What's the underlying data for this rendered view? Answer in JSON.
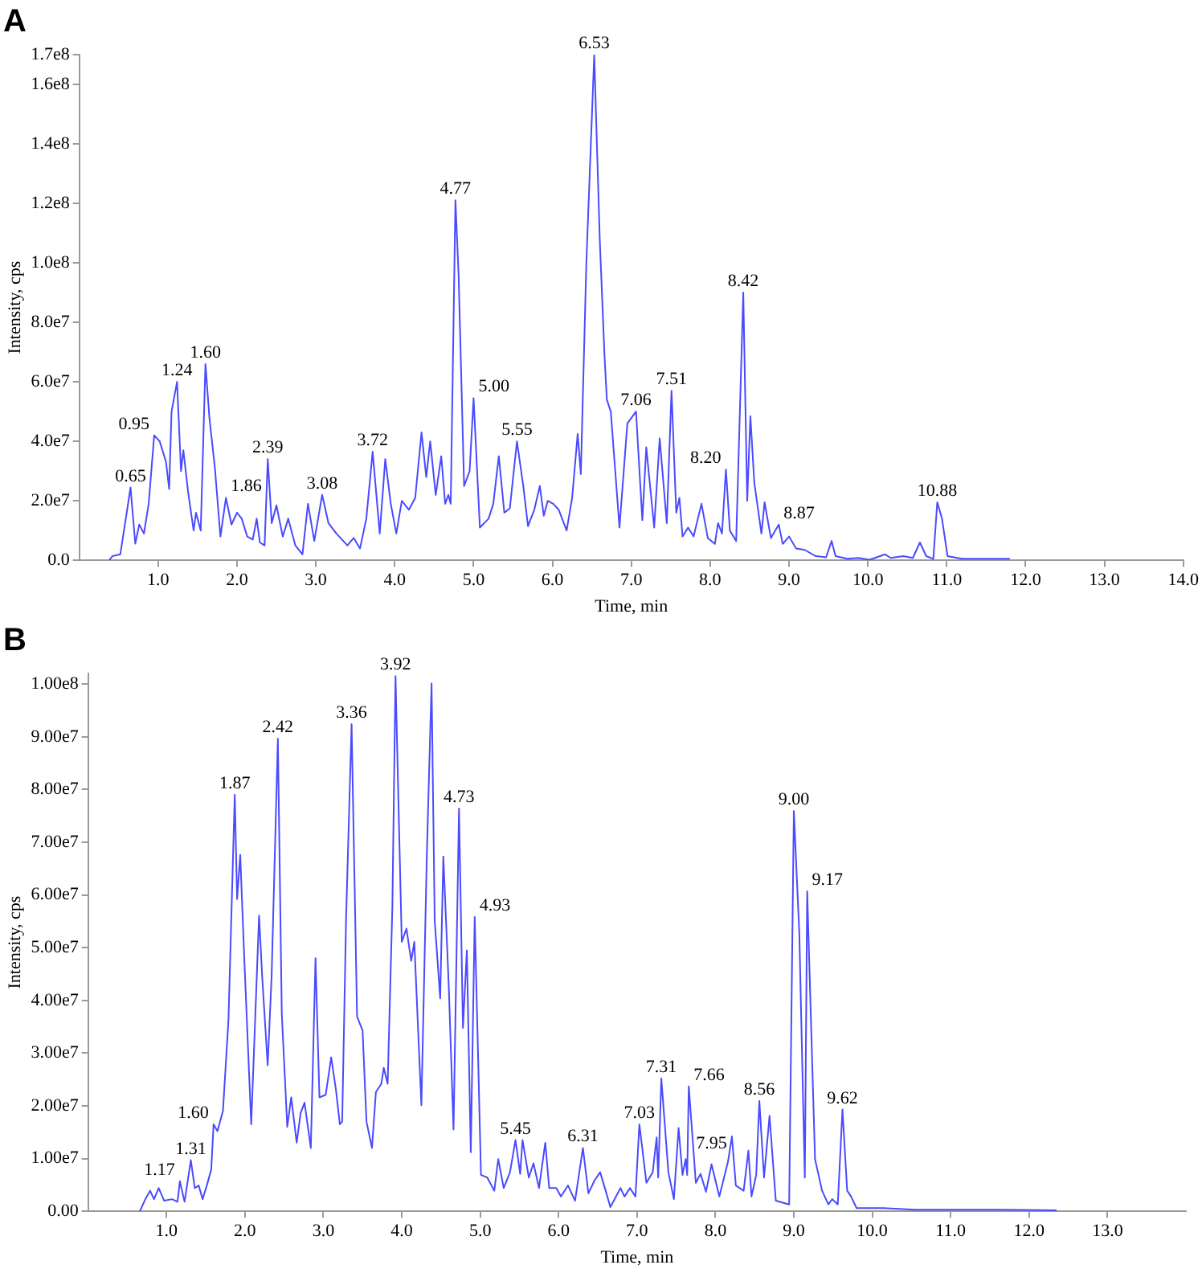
{
  "chart_data": [
    {
      "type": "line",
      "title": "A",
      "xlabel": "Time, min",
      "ylabel": "Intensity, cps",
      "x": [
        0.38,
        0.42,
        0.52,
        0.59,
        0.65,
        0.71,
        0.76,
        0.82,
        0.88,
        0.95,
        1.02,
        1.1,
        1.14,
        1.17,
        1.24,
        1.29,
        1.32,
        1.38,
        1.45,
        1.48,
        1.54,
        1.6,
        1.65,
        1.72,
        1.79,
        1.86,
        1.93,
        2.0,
        2.06,
        2.13,
        2.2,
        2.25,
        2.29,
        2.35,
        2.39,
        2.44,
        2.5,
        2.58,
        2.65,
        2.74,
        2.83,
        2.9,
        2.98,
        3.08,
        3.16,
        3.26,
        3.4,
        3.48,
        3.56,
        3.64,
        3.72,
        3.81,
        3.88,
        3.95,
        4.02,
        4.09,
        4.18,
        4.26,
        4.34,
        4.4,
        4.45,
        4.52,
        4.59,
        4.64,
        4.68,
        4.71,
        4.77,
        4.81,
        4.88,
        4.95,
        5.0,
        5.08,
        5.19,
        5.25,
        5.32,
        5.39,
        5.46,
        5.55,
        5.63,
        5.69,
        5.77,
        5.84,
        5.89,
        5.94,
        6.01,
        6.08,
        6.18,
        6.25,
        6.32,
        6.36,
        6.43,
        6.53,
        6.6,
        6.66,
        6.69,
        6.74,
        6.85,
        6.95,
        7.06,
        7.14,
        7.19,
        7.29,
        7.36,
        7.45,
        7.51,
        7.57,
        7.61,
        7.65,
        7.72,
        7.79,
        7.89,
        7.97,
        8.06,
        8.1,
        8.15,
        8.2,
        8.25,
        8.33,
        8.42,
        8.47,
        8.51,
        8.56,
        8.65,
        8.69,
        8.77,
        8.87,
        8.92,
        9.0,
        9.09,
        9.2,
        9.34,
        9.47,
        9.54,
        9.59,
        9.74,
        9.88,
        10.02,
        10.22,
        10.29,
        10.45,
        10.57,
        10.66,
        10.74,
        10.83,
        10.88,
        10.94,
        11.01,
        11.19,
        11.8
      ],
      "series": [
        {
          "color": "#4a4aff",
          "values": [
            0,
            1400000.0,
            2000000.0,
            14000000.0,
            24500000.0,
            5600000.0,
            12000000.0,
            9000000.0,
            19000000.0,
            42000000.0,
            40000000.0,
            33000000.0,
            24000000.0,
            50000000.0,
            60000000.0,
            30000000.0,
            37000000.0,
            23000000.0,
            10000000.0,
            16000000.0,
            10000000.0,
            66000000.0,
            48000000.0,
            31000000.0,
            8000000.0,
            21000000.0,
            12000000.0,
            16000000.0,
            14000000.0,
            8000000.0,
            7000000.0,
            14000000.0,
            6000000.0,
            5000000.0,
            34000000.0,
            12500000.0,
            18500000.0,
            8000000.0,
            14000000.0,
            5000000.0,
            2000000.0,
            19000000.0,
            6500000.0,
            22000000.0,
            12500000.0,
            9000000.0,
            5000000.0,
            7500000.0,
            4000000.0,
            14000000.0,
            36500000.0,
            9000000.0,
            34000000.0,
            19000000.0,
            9000000.0,
            20000000.0,
            17000000.0,
            21000000.0,
            43000000.0,
            28000000.0,
            40000000.0,
            22000000.0,
            35000000.0,
            19000000.0,
            22000000.0,
            19000000.0,
            121000000.0,
            96000000.0,
            25000000.0,
            30000000.0,
            54500000.0,
            11000000.0,
            14000000.0,
            19000000.0,
            35000000.0,
            16000000.0,
            17500000.0,
            40000000.0,
            25000000.0,
            11500000.0,
            17000000.0,
            25000000.0,
            15000000.0,
            20000000.0,
            19000000.0,
            17000000.0,
            10000000.0,
            21000000.0,
            42500000.0,
            29000000.0,
            100000000.0,
            170000000.0,
            108000000.0,
            69000000.0,
            54000000.0,
            50000000.0,
            11000000.0,
            46000000.0,
            50000000.0,
            13500000.0,
            38000000.0,
            11000000.0,
            41000000.0,
            12500000.0,
            57000000.0,
            16000000.0,
            21000000.0,
            8000000.0,
            11000000.0,
            8000000.0,
            19000000.0,
            7500000.0,
            5500000.0,
            12500000.0,
            9000000.0,
            30500000.0,
            10000000.0,
            6500000.0,
            90000000.0,
            20000000.0,
            48500000.0,
            26000000.0,
            9000000.0,
            19500000.0,
            7500000.0,
            12000000.0,
            5500000.0,
            8000000.0,
            4000000.0,
            3500000.0,
            1400000.0,
            1000000.0,
            6500000.0,
            1400000.0,
            500000.0,
            800000.0,
            200000.0,
            2000000.0,
            800000.0,
            1400000.0,
            800000.0,
            6000000.0,
            1400000.0,
            500000.0,
            19500000.0,
            14000000.0,
            1400000.0,
            500000.0,
            500000.0
          ]
        }
      ],
      "xlim": [
        0,
        14
      ],
      "xticks": [
        {
          "value": 1,
          "label": "1.0"
        },
        {
          "value": 2,
          "label": "2.0"
        },
        {
          "value": 3,
          "label": "3.0"
        },
        {
          "value": 4,
          "label": "4.0"
        },
        {
          "value": 5,
          "label": "5.0"
        },
        {
          "value": 6,
          "label": "6.0"
        },
        {
          "value": 7,
          "label": "7.0"
        },
        {
          "value": 8,
          "label": "8.0"
        },
        {
          "value": 9,
          "label": "9.0"
        },
        {
          "value": 10,
          "label": "10.0"
        },
        {
          "value": 11,
          "label": "11.0"
        },
        {
          "value": 12,
          "label": "12.0"
        },
        {
          "value": 13,
          "label": "13.0"
        },
        {
          "value": 14,
          "label": "14.0"
        }
      ],
      "ylim": [
        0,
        170000000.0
      ],
      "yticks": [
        {
          "value": 0,
          "label": "0.0"
        },
        {
          "value": 20000000.0,
          "label": "2.0e7"
        },
        {
          "value": 40000000.0,
          "label": "4.0e7"
        },
        {
          "value": 60000000.0,
          "label": "6.0e7"
        },
        {
          "value": 80000000.0,
          "label": "8.0e7"
        },
        {
          "value": 100000000.0,
          "label": "1.0e8"
        },
        {
          "value": 120000000.0,
          "label": "1.2e8"
        },
        {
          "value": 140000000.0,
          "label": "1.4e8"
        },
        {
          "value": 160000000.0,
          "label": "1.6e8"
        },
        {
          "value": 170000000.0,
          "label": "1.7e8"
        }
      ],
      "annotations": [
        {
          "text": "0.65",
          "x": 0.65,
          "y": 24500000.0
        },
        {
          "text": "0.95",
          "x": 0.95,
          "y": 42000000.0
        },
        {
          "text": "1.24",
          "x": 1.24,
          "y": 60000000.0
        },
        {
          "text": "1.60",
          "x": 1.6,
          "y": 66000000.0
        },
        {
          "text": "1.86",
          "x": 1.86,
          "y": 21000000.0
        },
        {
          "text": "2.39",
          "x": 2.39,
          "y": 34000000.0
        },
        {
          "text": "3.08",
          "x": 3.08,
          "y": 22000000.0
        },
        {
          "text": "3.72",
          "x": 3.72,
          "y": 36500000.0
        },
        {
          "text": "4.77",
          "x": 4.77,
          "y": 121000000.0
        },
        {
          "text": "5.00",
          "x": 5.0,
          "y": 54500000.0
        },
        {
          "text": "5.55",
          "x": 5.55,
          "y": 40000000.0
        },
        {
          "text": "6.53",
          "x": 6.53,
          "y": 170000000.0
        },
        {
          "text": "7.06",
          "x": 7.06,
          "y": 50000000.0
        },
        {
          "text": "7.51",
          "x": 7.51,
          "y": 57000000.0
        },
        {
          "text": "8.20",
          "x": 8.2,
          "y": 30500000.0
        },
        {
          "text": "8.42",
          "x": 8.42,
          "y": 90000000.0
        },
        {
          "text": "8.87",
          "x": 8.87,
          "y": 12000000.0
        },
        {
          "text": "10.88",
          "x": 10.88,
          "y": 19500000.0
        }
      ]
    },
    {
      "type": "line",
      "title": "B",
      "xlabel": "Time, min",
      "ylabel": "Intensity, cps",
      "x": [
        0.66,
        0.73,
        0.79,
        0.84,
        0.9,
        0.97,
        1.07,
        1.14,
        1.17,
        1.23,
        1.31,
        1.36,
        1.41,
        1.46,
        1.51,
        1.57,
        1.6,
        1.65,
        1.72,
        1.79,
        1.87,
        1.9,
        1.94,
        1.99,
        2.08,
        2.18,
        2.22,
        2.29,
        2.34,
        2.42,
        2.47,
        2.54,
        2.59,
        2.66,
        2.71,
        2.76,
        2.84,
        2.9,
        2.95,
        3.03,
        3.1,
        3.16,
        3.21,
        3.24,
        3.29,
        3.36,
        3.43,
        3.5,
        3.55,
        3.62,
        3.67,
        3.74,
        3.77,
        3.82,
        3.88,
        3.92,
        3.97,
        4.0,
        4.06,
        4.12,
        4.16,
        4.25,
        4.32,
        4.38,
        4.42,
        4.49,
        4.53,
        4.6,
        4.66,
        4.73,
        4.78,
        4.83,
        4.88,
        4.93,
        5.01,
        5.09,
        5.18,
        5.23,
        5.3,
        5.38,
        5.45,
        5.51,
        5.54,
        5.62,
        5.68,
        5.75,
        5.83,
        5.88,
        5.97,
        6.03,
        6.12,
        6.21,
        6.31,
        6.38,
        6.46,
        6.53,
        6.6,
        6.66,
        6.79,
        6.84,
        6.91,
        6.98,
        7.03,
        7.12,
        7.2,
        7.25,
        7.27,
        7.31,
        7.4,
        7.47,
        7.53,
        7.58,
        7.62,
        7.64,
        7.66,
        7.75,
        7.81,
        7.88,
        7.95,
        8.05,
        8.16,
        8.21,
        8.26,
        8.36,
        8.42,
        8.46,
        8.52,
        8.56,
        8.62,
        8.69,
        8.77,
        8.94,
        9.0,
        9.07,
        9.14,
        9.17,
        9.27,
        9.36,
        9.44,
        9.49,
        9.56,
        9.62,
        9.68,
        9.73,
        9.8,
        10.14,
        10.55,
        11.64,
        12.35
      ],
      "series": [
        {
          "color": "#4a4aff",
          "values": [
            0,
            2300000.0,
            3900000.0,
            2300000.0,
            4400000.0,
            2000000.0,
            2300000.0,
            1800000.0,
            5700000.0,
            1800000.0,
            9700000.0,
            4400000.0,
            4900000.0,
            2300000.0,
            4700000.0,
            7900000.0,
            16500000.0,
            15200000.0,
            19100000.0,
            36300000.0,
            79000000.0,
            59200000.0,
            67600000.0,
            48500000.0,
            16500000.0,
            56100000.0,
            44500000.0,
            27700000.0,
            44500000.0,
            89600000.0,
            37400000.0,
            16000000.0,
            21600000.0,
            13000000.0,
            18600000.0,
            20600000.0,
            12000000.0,
            48000000.0,
            21600000.0,
            22100000.0,
            29200000.0,
            23100000.0,
            16500000.0,
            17000000.0,
            55600000.0,
            92400000.0,
            36900000.0,
            34300000.0,
            17000000.0,
            12000000.0,
            22600000.0,
            24200000.0,
            27200000.0,
            24200000.0,
            57700000.0,
            101500000.0,
            69800000.0,
            51100000.0,
            53600000.0,
            47500000.0,
            51100000.0,
            20100000.0,
            67800000.0,
            100100000.0,
            55100000.0,
            40400000.0,
            67300000.0,
            42400000.0,
            15500000.0,
            76400000.0,
            34800000.0,
            49500000.0,
            11200000.0,
            55800000.0,
            6900000.0,
            6400000.0,
            3900000.0,
            9900000.0,
            4400000.0,
            7400000.0,
            13500000.0,
            7100000.0,
            13500000.0,
            6400000.0,
            9100000.0,
            4400000.0,
            13000000.0,
            4400000.0,
            4400000.0,
            2800000.0,
            4900000.0,
            2000000.0,
            12000000.0,
            3400000.0,
            5900000.0,
            7400000.0,
            3900000.0,
            800000.0,
            4400000.0,
            2800000.0,
            4400000.0,
            2800000.0,
            16500000.0,
            5400000.0,
            7400000.0,
            14000000.0,
            6400000.0,
            25200000.0,
            7400000.0,
            2300000.0,
            15800000.0,
            6900000.0,
            9900000.0,
            6900000.0,
            23700000.0,
            5400000.0,
            7100000.0,
            3700000.0,
            8900000.0,
            2800000.0,
            9400000.0,
            14200000.0,
            4900000.0,
            3900000.0,
            11500000.0,
            2800000.0,
            6900000.0,
            20900000.0,
            6400000.0,
            18100000.0,
            2000000.0,
            1300000.0,
            75900000.0,
            52600000.0,
            6400000.0,
            60700000.0,
            9900000.0,
            3900000.0,
            1300000.0,
            2300000.0,
            1300000.0,
            19300000.0,
            3900000.0,
            2800000.0,
            600000.0,
            600000.0,
            300000.0,
            300000.0,
            200000.0
          ]
        }
      ],
      "xlim": [
        0,
        14
      ],
      "xticks": [
        {
          "value": 1,
          "label": "1.0"
        },
        {
          "value": 2,
          "label": "2.0"
        },
        {
          "value": 3,
          "label": "3.0"
        },
        {
          "value": 4,
          "label": "4.0"
        },
        {
          "value": 5,
          "label": "5.0"
        },
        {
          "value": 6,
          "label": "6.0"
        },
        {
          "value": 7,
          "label": "7.0"
        },
        {
          "value": 8,
          "label": "8.0"
        },
        {
          "value": 9,
          "label": "9.0"
        },
        {
          "value": 10,
          "label": "10.0"
        },
        {
          "value": 11,
          "label": "11.0"
        },
        {
          "value": 12,
          "label": "12.0"
        },
        {
          "value": 13,
          "label": "13.0"
        }
      ],
      "ylim": [
        0,
        102000000.0
      ],
      "yticks": [
        {
          "value": 0,
          "label": "0.00"
        },
        {
          "value": 10000000.0,
          "label": "1.00e7"
        },
        {
          "value": 20000000.0,
          "label": "2.00e7"
        },
        {
          "value": 30000000.0,
          "label": "3.00e7"
        },
        {
          "value": 40000000.0,
          "label": "4.00e7"
        },
        {
          "value": 50000000.0,
          "label": "5.00e7"
        },
        {
          "value": 60000000.0,
          "label": "6.00e7"
        },
        {
          "value": 70000000.0,
          "label": "7.00e7"
        },
        {
          "value": 80000000.0,
          "label": "8.00e7"
        },
        {
          "value": 90000000.0,
          "label": "9.00e7"
        },
        {
          "value": 100000000.0,
          "label": "1.00e8"
        }
      ],
      "annotations": [
        {
          "text": "1.17",
          "x": 1.17,
          "y": 5700000.0
        },
        {
          "text": "1.31",
          "x": 1.31,
          "y": 9700000.0
        },
        {
          "text": "1.60",
          "x": 1.6,
          "y": 16500000.0
        },
        {
          "text": "1.87",
          "x": 1.87,
          "y": 79000000.0
        },
        {
          "text": "2.42",
          "x": 2.42,
          "y": 89600000.0
        },
        {
          "text": "3.36",
          "x": 3.36,
          "y": 92400000.0
        },
        {
          "text": "3.92",
          "x": 3.92,
          "y": 101500000.0
        },
        {
          "text": "4.73",
          "x": 4.73,
          "y": 76400000.0
        },
        {
          "text": "4.93",
          "x": 4.93,
          "y": 55800000.0
        },
        {
          "text": "5.45",
          "x": 5.45,
          "y": 13500000.0
        },
        {
          "text": "6.31",
          "x": 6.31,
          "y": 12000000.0
        },
        {
          "text": "7.03",
          "x": 7.03,
          "y": 16500000.0
        },
        {
          "text": "7.31",
          "x": 7.31,
          "y": 25200000.0
        },
        {
          "text": "7.66",
          "x": 7.66,
          "y": 23700000.0
        },
        {
          "text": "7.95",
          "x": 7.95,
          "y": 8900000.0
        },
        {
          "text": "8.56",
          "x": 8.56,
          "y": 20900000.0
        },
        {
          "text": "9.00",
          "x": 9.0,
          "y": 75900000.0
        },
        {
          "text": "9.17",
          "x": 9.17,
          "y": 60700000.0
        },
        {
          "text": "9.62",
          "x": 9.62,
          "y": 19300000.0
        }
      ]
    }
  ]
}
